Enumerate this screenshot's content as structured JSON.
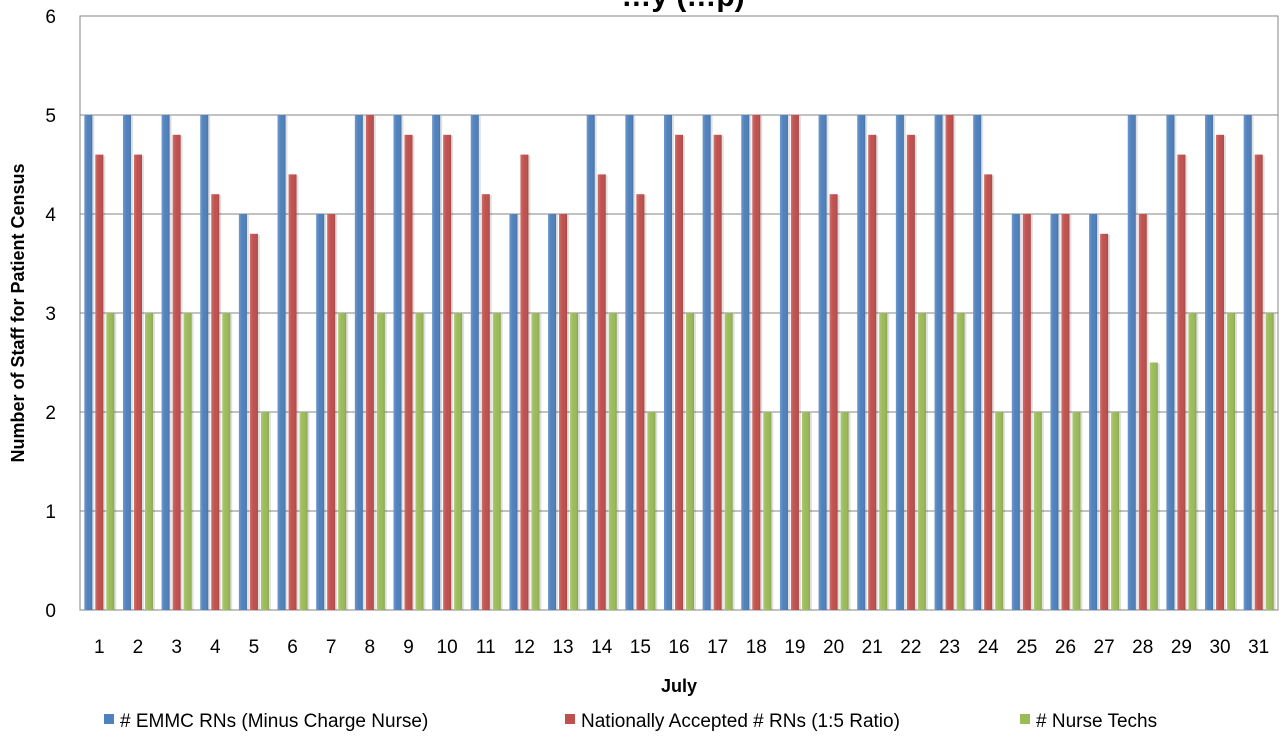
{
  "chart_data": {
    "type": "bar",
    "title": "…y (…p)",
    "xlabel": "July",
    "ylabel": "Number of Staff for Patient Census",
    "ylim": [
      0,
      6
    ],
    "yticks": [
      0,
      1,
      2,
      3,
      4,
      5,
      6
    ],
    "grid": true,
    "legend_position": "bottom",
    "categories": [
      "1",
      "2",
      "3",
      "4",
      "5",
      "6",
      "7",
      "8",
      "9",
      "10",
      "11",
      "12",
      "13",
      "14",
      "15",
      "16",
      "17",
      "18",
      "19",
      "20",
      "21",
      "22",
      "23",
      "24",
      "25",
      "26",
      "27",
      "28",
      "29",
      "30",
      "31"
    ],
    "series": [
      {
        "name": "# EMMC RNs (Minus Charge Nurse)",
        "color": "#4F81BD",
        "values": [
          5,
          5,
          5,
          5,
          4,
          5,
          4,
          5,
          5,
          5,
          5,
          4,
          4,
          5,
          5,
          5,
          5,
          5,
          5,
          5,
          5,
          5,
          5,
          5,
          4,
          4,
          4,
          5,
          5,
          5,
          5
        ]
      },
      {
        "name": "Nationally Accepted # RNs (1:5 Ratio)",
        "color": "#C0504D",
        "values": [
          4.6,
          4.6,
          4.8,
          4.2,
          3.8,
          4.4,
          4,
          5,
          4.8,
          4.8,
          4.2,
          4.6,
          4,
          4.4,
          4.2,
          4.8,
          4.8,
          5,
          5,
          4.2,
          4.8,
          4.8,
          5,
          4.4,
          4,
          4,
          3.8,
          4,
          4.6,
          4.8,
          4.6
        ]
      },
      {
        "name": "# Nurse Techs",
        "color": "#9BBB59",
        "values": [
          3,
          3,
          3,
          3,
          2,
          2,
          3,
          3,
          3,
          3,
          3,
          3,
          3,
          3,
          2,
          3,
          3,
          2,
          2,
          2,
          3,
          3,
          3,
          2,
          2,
          2,
          2,
          2.5,
          3,
          3,
          3
        ]
      }
    ]
  }
}
